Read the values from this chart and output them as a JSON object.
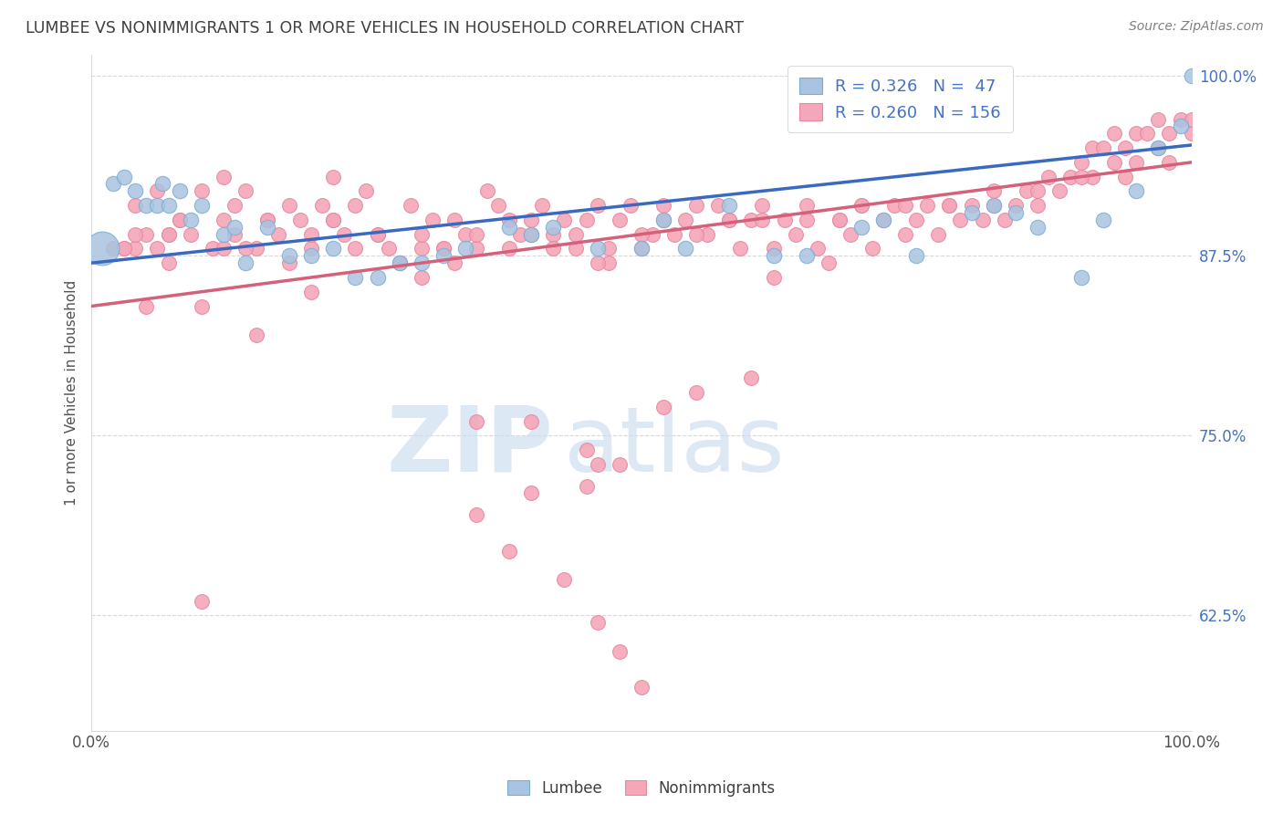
{
  "title": "LUMBEE VS NONIMMIGRANTS 1 OR MORE VEHICLES IN HOUSEHOLD CORRELATION CHART",
  "source": "Source: ZipAtlas.com",
  "ylabel": "1 or more Vehicles in Household",
  "xlim": [
    0,
    1
  ],
  "ylim": [
    0.545,
    1.015
  ],
  "yticks": [
    0.625,
    0.75,
    0.875,
    1.0
  ],
  "ytick_labels": [
    "62.5%",
    "75.0%",
    "87.5%",
    "100.0%"
  ],
  "lumbee_R": 0.326,
  "lumbee_N": 47,
  "nonimm_R": 0.26,
  "nonimm_N": 156,
  "lumbee_color": "#a8c4e0",
  "lumbee_edge_color": "#7aadd4",
  "nonimm_color": "#f4a7b8",
  "nonimm_edge_color": "#e888a0",
  "line_lumbee_color": "#3a6abf",
  "line_nonimm_color": "#d4607a",
  "legend_text_color": "#4472c4",
  "title_color": "#404040",
  "source_color": "#808080",
  "watermark_color": "#dde8f5",
  "background_color": "#ffffff",
  "grid_color": "#d8d8d8",
  "lumbee_line_intercept": 0.87,
  "lumbee_line_slope": 0.082,
  "nonimm_line_intercept": 0.84,
  "nonimm_line_slope": 0.1,
  "lumbee_x": [
    0.01,
    0.02,
    0.03,
    0.04,
    0.05,
    0.06,
    0.065,
    0.07,
    0.08,
    0.09,
    0.1,
    0.12,
    0.13,
    0.14,
    0.16,
    0.18,
    0.2,
    0.22,
    0.24,
    0.26,
    0.28,
    0.3,
    0.32,
    0.34,
    0.38,
    0.4,
    0.42,
    0.46,
    0.5,
    0.52,
    0.54,
    0.58,
    0.62,
    0.65,
    0.7,
    0.72,
    0.75,
    0.8,
    0.82,
    0.84,
    0.86,
    0.9,
    0.92,
    0.95,
    0.97,
    0.99,
    1.0
  ],
  "lumbee_y": [
    0.88,
    0.925,
    0.93,
    0.92,
    0.91,
    0.91,
    0.925,
    0.91,
    0.92,
    0.9,
    0.91,
    0.89,
    0.895,
    0.87,
    0.895,
    0.875,
    0.875,
    0.88,
    0.86,
    0.86,
    0.87,
    0.87,
    0.875,
    0.88,
    0.895,
    0.89,
    0.895,
    0.88,
    0.88,
    0.9,
    0.88,
    0.91,
    0.875,
    0.875,
    0.895,
    0.9,
    0.875,
    0.905,
    0.91,
    0.905,
    0.895,
    0.86,
    0.9,
    0.92,
    0.95,
    0.965,
    1.0
  ],
  "lumbee_size_big": [
    0
  ],
  "lumbee_big_x": [
    0.01
  ],
  "lumbee_big_y": [
    0.88
  ],
  "nonimm_x": [
    0.02,
    0.03,
    0.04,
    0.04,
    0.05,
    0.06,
    0.07,
    0.07,
    0.08,
    0.09,
    0.1,
    0.11,
    0.12,
    0.12,
    0.13,
    0.14,
    0.15,
    0.16,
    0.17,
    0.18,
    0.19,
    0.2,
    0.21,
    0.22,
    0.22,
    0.23,
    0.24,
    0.25,
    0.26,
    0.27,
    0.28,
    0.29,
    0.3,
    0.3,
    0.31,
    0.32,
    0.33,
    0.33,
    0.34,
    0.35,
    0.36,
    0.37,
    0.38,
    0.39,
    0.4,
    0.41,
    0.42,
    0.43,
    0.44,
    0.45,
    0.46,
    0.47,
    0.47,
    0.48,
    0.49,
    0.5,
    0.51,
    0.52,
    0.53,
    0.54,
    0.55,
    0.56,
    0.57,
    0.58,
    0.59,
    0.6,
    0.61,
    0.62,
    0.62,
    0.63,
    0.64,
    0.65,
    0.66,
    0.67,
    0.68,
    0.69,
    0.7,
    0.71,
    0.72,
    0.73,
    0.74,
    0.75,
    0.76,
    0.77,
    0.78,
    0.79,
    0.8,
    0.81,
    0.82,
    0.83,
    0.84,
    0.85,
    0.86,
    0.87,
    0.88,
    0.89,
    0.9,
    0.91,
    0.91,
    0.92,
    0.93,
    0.93,
    0.94,
    0.95,
    0.95,
    0.96,
    0.97,
    0.97,
    0.98,
    0.99,
    1.0,
    1.0,
    0.03,
    0.04,
    0.06,
    0.07,
    0.08,
    0.12,
    0.13,
    0.14,
    0.16,
    0.18,
    0.2,
    0.22,
    0.24,
    0.26,
    0.28,
    0.3,
    0.32,
    0.35,
    0.38,
    0.4,
    0.42,
    0.44,
    0.46,
    0.5,
    0.52,
    0.55,
    0.58,
    0.61,
    0.65,
    0.68,
    0.7,
    0.74,
    0.78,
    0.82,
    0.86,
    0.9,
    0.94,
    0.98,
    0.05,
    0.1,
    0.15,
    0.2,
    0.35,
    0.4,
    0.45,
    0.46,
    0.48,
    0.52,
    0.55,
    0.6
  ],
  "nonimm_y": [
    0.88,
    0.88,
    0.91,
    0.88,
    0.89,
    0.92,
    0.89,
    0.87,
    0.9,
    0.89,
    0.92,
    0.88,
    0.93,
    0.9,
    0.91,
    0.92,
    0.88,
    0.9,
    0.89,
    0.91,
    0.9,
    0.88,
    0.91,
    0.93,
    0.9,
    0.89,
    0.91,
    0.92,
    0.89,
    0.88,
    0.87,
    0.91,
    0.88,
    0.86,
    0.9,
    0.88,
    0.9,
    0.87,
    0.89,
    0.88,
    0.92,
    0.91,
    0.9,
    0.89,
    0.9,
    0.91,
    0.89,
    0.9,
    0.88,
    0.9,
    0.91,
    0.88,
    0.87,
    0.9,
    0.91,
    0.88,
    0.89,
    0.91,
    0.89,
    0.9,
    0.91,
    0.89,
    0.91,
    0.9,
    0.88,
    0.9,
    0.91,
    0.88,
    0.86,
    0.9,
    0.89,
    0.91,
    0.88,
    0.87,
    0.9,
    0.89,
    0.91,
    0.88,
    0.9,
    0.91,
    0.89,
    0.9,
    0.91,
    0.89,
    0.91,
    0.9,
    0.91,
    0.9,
    0.91,
    0.9,
    0.91,
    0.92,
    0.91,
    0.93,
    0.92,
    0.93,
    0.94,
    0.95,
    0.93,
    0.95,
    0.94,
    0.96,
    0.95,
    0.96,
    0.94,
    0.96,
    0.95,
    0.97,
    0.96,
    0.97,
    0.96,
    0.97,
    0.88,
    0.89,
    0.88,
    0.89,
    0.9,
    0.88,
    0.89,
    0.88,
    0.9,
    0.87,
    0.89,
    0.9,
    0.88,
    0.89,
    0.87,
    0.89,
    0.88,
    0.89,
    0.88,
    0.89,
    0.88,
    0.89,
    0.87,
    0.89,
    0.9,
    0.89,
    0.9,
    0.9,
    0.9,
    0.9,
    0.91,
    0.91,
    0.91,
    0.92,
    0.92,
    0.93,
    0.93,
    0.94,
    0.84,
    0.84,
    0.82,
    0.85,
    0.76,
    0.76,
    0.74,
    0.73,
    0.73,
    0.77,
    0.78,
    0.79
  ],
  "nonimm_outlier_x": [
    0.1,
    0.35,
    0.38,
    0.4,
    0.43,
    0.45,
    0.46,
    0.48,
    0.5
  ],
  "nonimm_outlier_y": [
    0.635,
    0.695,
    0.67,
    0.71,
    0.65,
    0.715,
    0.62,
    0.6,
    0.575
  ]
}
